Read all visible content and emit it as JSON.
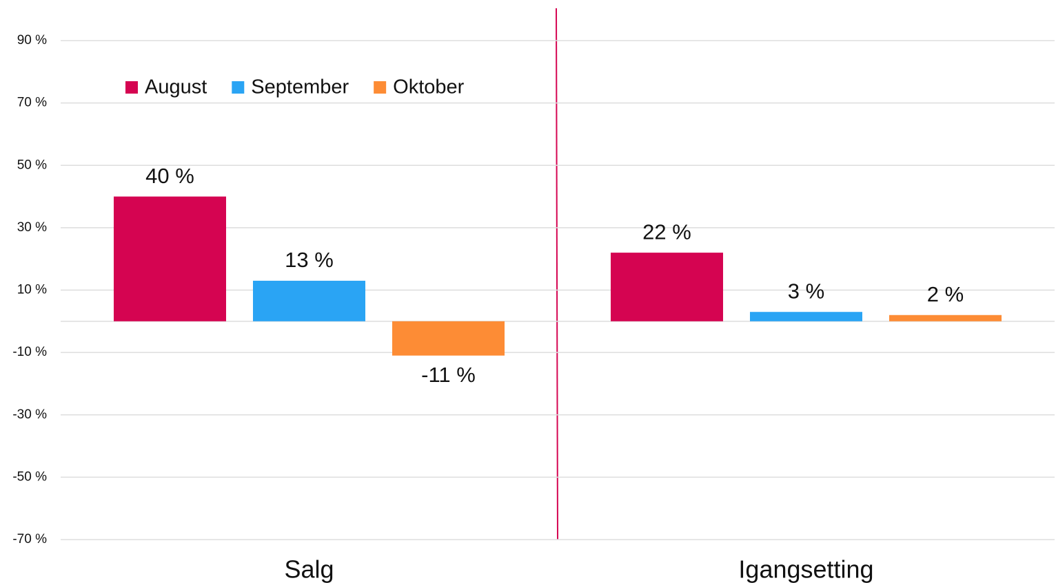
{
  "chart_data": {
    "type": "bar",
    "categories": [
      "Salg",
      "Igangsetting"
    ],
    "series": [
      {
        "name": "August",
        "color": "#d50451",
        "values": [
          40,
          22
        ],
        "value_labels": [
          "40 %",
          "22 %"
        ]
      },
      {
        "name": "September",
        "color": "#2aa4f4",
        "values": [
          13,
          3
        ],
        "value_labels": [
          "13 %",
          "3 %"
        ]
      },
      {
        "name": "Oktober",
        "color": "#fd8c35",
        "values": [
          -11,
          2
        ],
        "value_labels": [
          "-11 %",
          "2 %"
        ]
      }
    ],
    "ylim": [
      -70,
      90
    ],
    "yticks": [
      {
        "value": -70,
        "label": "-70 %"
      },
      {
        "value": -50,
        "label": "-50 %"
      },
      {
        "value": -30,
        "label": "-30 %"
      },
      {
        "value": -10,
        "label": "-10 %"
      },
      {
        "value": 10,
        "label": "10 %"
      },
      {
        "value": 30,
        "label": "30 %"
      },
      {
        "value": 50,
        "label": "50 %"
      },
      {
        "value": 70,
        "label": "70 %"
      },
      {
        "value": 90,
        "label": "90 %"
      }
    ],
    "grid": true,
    "legend": "top-left"
  }
}
